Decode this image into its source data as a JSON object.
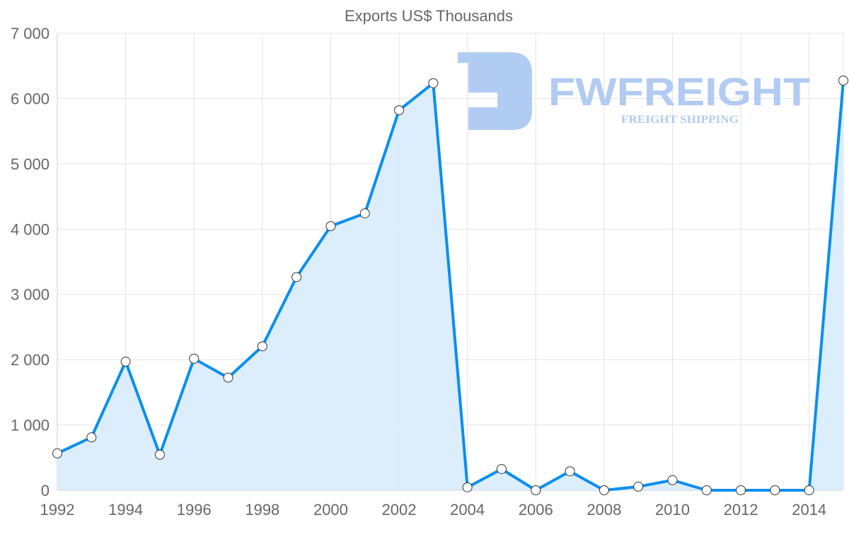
{
  "chart_data": {
    "type": "area",
    "title": "Exports US$ Thousands",
    "xlabel": "",
    "ylabel": "",
    "x": [
      1992,
      1993,
      1994,
      1995,
      1996,
      1997,
      1998,
      1999,
      2000,
      2001,
      2002,
      2003,
      2004,
      2005,
      2006,
      2007,
      2008,
      2009,
      2010,
      2011,
      2012,
      2013,
      2014,
      2015
    ],
    "values": [
      565,
      810,
      1970,
      545,
      2015,
      1725,
      2205,
      3265,
      4045,
      4240,
      5820,
      6235,
      45,
      325,
      0,
      290,
      0,
      55,
      155,
      0,
      0,
      0,
      0,
      6275
    ],
    "ylim": [
      0,
      7000
    ],
    "xlim": [
      1992,
      2015
    ],
    "y_ticks": [
      0,
      1000,
      2000,
      3000,
      4000,
      5000,
      6000,
      7000
    ],
    "y_tick_labels": [
      "0",
      "1 000",
      "2 000",
      "3 000",
      "4 000",
      "5 000",
      "6 000",
      "7 000"
    ],
    "x_ticks": [
      1992,
      1994,
      1996,
      1998,
      2000,
      2002,
      2004,
      2006,
      2008,
      2010,
      2012,
      2014
    ],
    "x_tick_labels": [
      "1992",
      "1994",
      "1996",
      "1998",
      "2000",
      "2002",
      "2004",
      "2006",
      "2008",
      "2010",
      "2012",
      "2014"
    ],
    "grid": true,
    "line_color": "#0a8ff0",
    "fill_color": "#d8ebfc"
  },
  "watermark": {
    "brand": "FWFREIGHT",
    "tagline": "FREIGHT SHIPPING",
    "color": "#a9c6f2"
  }
}
